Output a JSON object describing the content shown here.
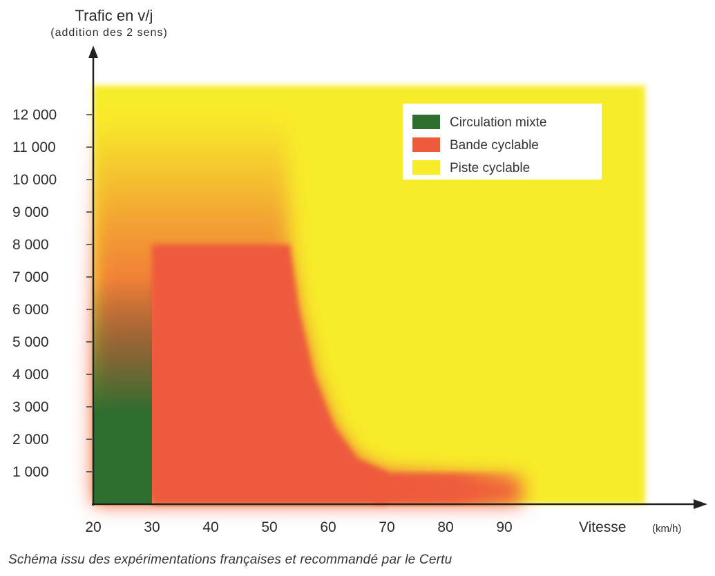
{
  "chart_data": {
    "type": "area",
    "ylabel": "Trafic en v/j",
    "ylabel_sub": "(addition des 2 sens)",
    "xlabel": "Vitesse",
    "xlabel_unit": "(km/h)",
    "x_ticks": [
      20,
      30,
      40,
      50,
      60,
      70,
      80,
      90
    ],
    "y_ticks": [
      {
        "value": 1000,
        "label": "1 000"
      },
      {
        "value": 2000,
        "label": "2 000"
      },
      {
        "value": 3000,
        "label": "3 000"
      },
      {
        "value": 4000,
        "label": "4 000"
      },
      {
        "value": 5000,
        "label": "5 000"
      },
      {
        "value": 6000,
        "label": "6 000"
      },
      {
        "value": 7000,
        "label": "7 000"
      },
      {
        "value": 8000,
        "label": "8 000"
      },
      {
        "value": 9000,
        "label": "9 000"
      },
      {
        "value": 10000,
        "label": "10 000"
      },
      {
        "value": 11000,
        "label": "11 000"
      },
      {
        "value": 12000,
        "label": "12 000"
      }
    ],
    "xlim": [
      20,
      115
    ],
    "ylim": [
      0,
      13500
    ],
    "legend_position": "top-right",
    "regions": [
      {
        "name": "Piste cyclable",
        "color": "#F7EC2A",
        "boundary": [
          [
            20,
            0
          ],
          [
            114,
            0
          ],
          [
            114,
            12900
          ],
          [
            20,
            12900
          ]
        ]
      },
      {
        "name": "Bande cyclable",
        "color": "#EE5A3C",
        "boundary": [
          [
            20,
            0
          ],
          [
            93,
            0
          ],
          [
            93,
            800
          ],
          [
            70,
            1000
          ],
          [
            65,
            1400
          ],
          [
            61,
            2400
          ],
          [
            57.5,
            4000
          ],
          [
            55,
            6000
          ],
          [
            53.5,
            8000
          ],
          [
            53,
            11000
          ],
          [
            52.5,
            12000
          ],
          [
            20,
            12000
          ]
        ]
      },
      {
        "name": "Circulation mixte",
        "color": "#2E6E2E",
        "boundary": [
          [
            20,
            0
          ],
          [
            30,
            0
          ],
          [
            30,
            7000
          ],
          [
            20,
            7000
          ]
        ]
      }
    ],
    "legend": [
      {
        "label": "Circulation mixte",
        "color": "#2E6E2E"
      },
      {
        "label": "Bande cyclable",
        "color": "#EE5A3C"
      },
      {
        "label": "Piste cyclable",
        "color": "#F7EC2A"
      }
    ]
  },
  "caption": "Schéma issu des expérimentations françaises et recommandé par le Certu"
}
